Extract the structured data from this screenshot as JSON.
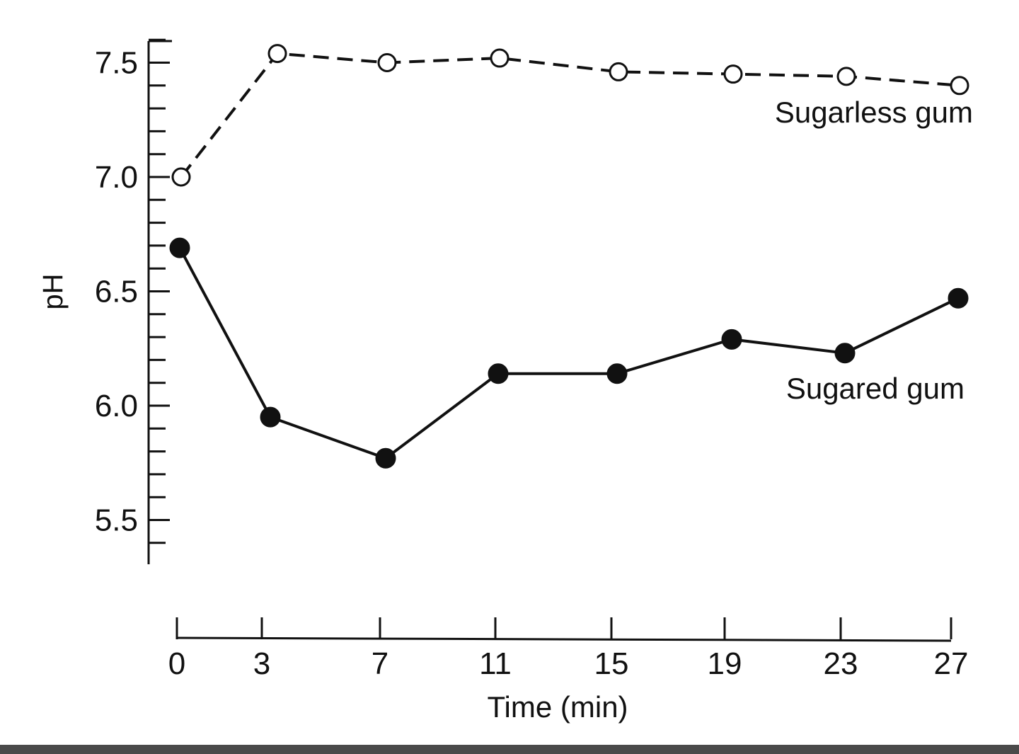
{
  "chart_data": {
    "type": "line",
    "title": "",
    "xlabel": "Time (min)",
    "ylabel": "pH",
    "x": [
      0,
      3,
      7,
      11,
      15,
      19,
      23,
      27
    ],
    "x_ticks": [
      "0",
      "3",
      "7",
      "11",
      "15",
      "19",
      "23",
      "27"
    ],
    "y_ticks": [
      "5.5",
      "6.0",
      "6.5",
      "7.0",
      "7.5"
    ],
    "ylim": [
      5.3,
      7.6
    ],
    "xlim": [
      0,
      27
    ],
    "grid": false,
    "legend": "inline labels at right end of each series",
    "series": [
      {
        "name": "Sugarless gum",
        "style": "dashed, open circles",
        "color": "#111111",
        "values": [
          7.0,
          7.54,
          7.5,
          7.52,
          7.46,
          7.45,
          7.44,
          7.4
        ]
      },
      {
        "name": "Sugared gum",
        "style": "solid, filled circles",
        "color": "#111111",
        "values": [
          6.69,
          5.95,
          5.77,
          6.14,
          6.14,
          6.29,
          6.23,
          6.47
        ]
      }
    ]
  }
}
